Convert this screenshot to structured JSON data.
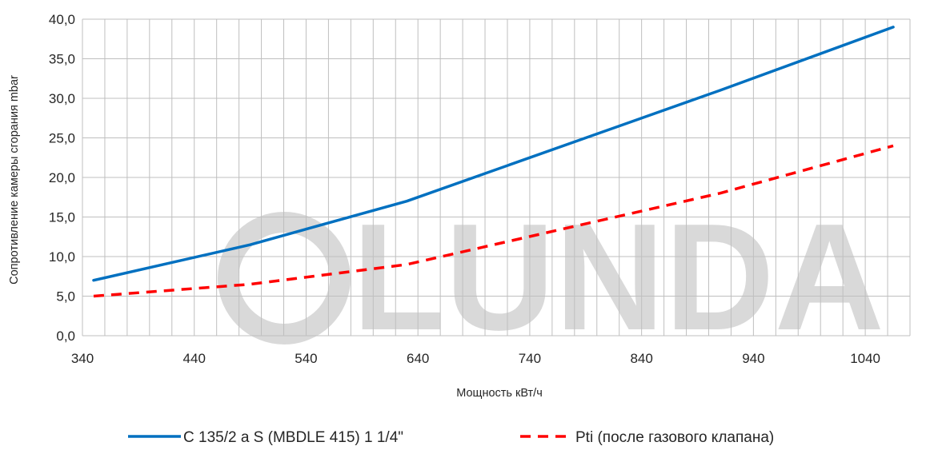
{
  "watermark": {
    "text": "LUNDA",
    "color": "#d9d9d9"
  },
  "chart_data": {
    "type": "line",
    "xlabel": "Мощность кВт/ч",
    "ylabel": "Сопротивление камеры сгорания mbar",
    "xlim": [
      340,
      1080
    ],
    "ylim": [
      0,
      40
    ],
    "x_ticks": [
      340,
      440,
      540,
      640,
      740,
      840,
      940,
      1040
    ],
    "x_minor_step": 20,
    "y_ticks": [
      "0,0",
      "5,0",
      "10,0",
      "15,0",
      "20,0",
      "25,0",
      "30,0",
      "35,0",
      "40,0"
    ],
    "y_tick_values": [
      0,
      5,
      10,
      15,
      20,
      25,
      30,
      35,
      40
    ],
    "grid": true,
    "legend_position": "bottom",
    "series": [
      {
        "name": "C 135/2 a S (MBDLE 415) 1 1/4\"",
        "color": "#0070c0",
        "style": "solid",
        "x": [
          350,
          490,
          630,
          910,
          1065
        ],
        "y": [
          7.0,
          11.5,
          17.0,
          31.0,
          39.0
        ]
      },
      {
        "name": "Pti (после газового клапана)",
        "color": "#ff0000",
        "style": "dashed",
        "x": [
          350,
          490,
          630,
          910,
          1065
        ],
        "y": [
          5.0,
          6.5,
          9.0,
          18.0,
          24.0
        ]
      }
    ]
  }
}
